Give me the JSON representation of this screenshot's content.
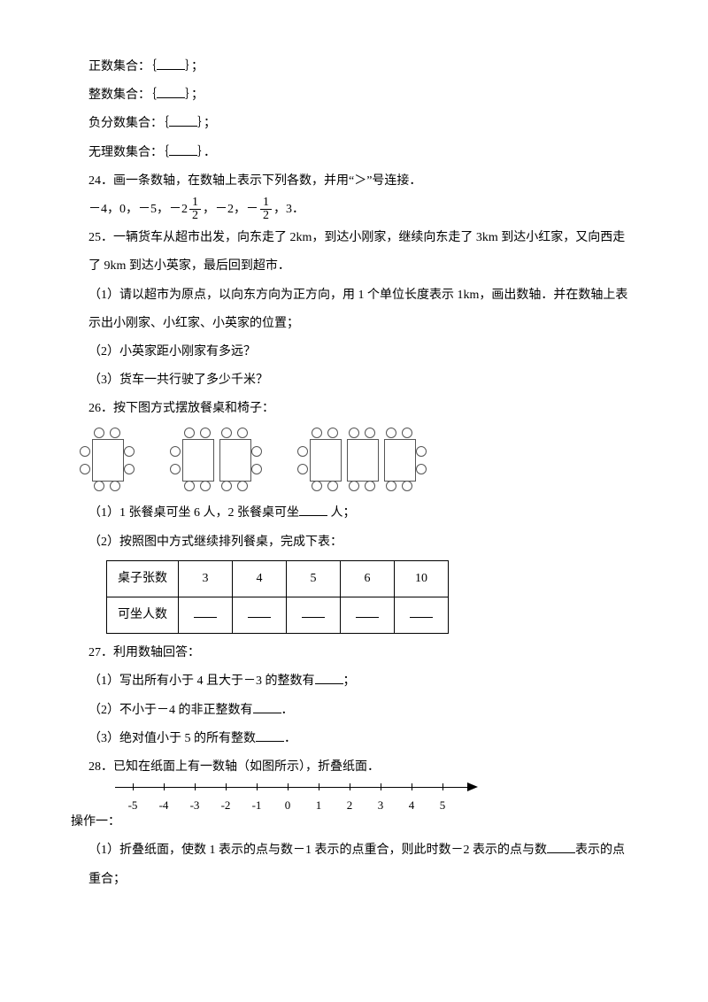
{
  "sets": {
    "positive": "正数集合：｛",
    "integer": "整数集合：｛",
    "negfrac": "负分数集合：｛",
    "irrational": "无理数集合：｛",
    "close": "｝；",
    "close_dot": "｝．"
  },
  "q24": {
    "head": "24．画一条数轴，在数轴上表示下列各数，并用“＞”号连接．",
    "nums_a": "－4，0，－5，－2",
    "frac1_num": "1",
    "frac1_den": "2",
    "nums_b": "，－2，－",
    "frac2_num": "1",
    "frac2_den": "2",
    "nums_c": "，3．"
  },
  "q25": {
    "l1": "25．一辆货车从超市出发，向东走了 2km，到达小刚家，继续向东走了 3km 到达小红家，又向西走",
    "l2": "了 9km 到达小英家，最后回到超市．",
    "p1a": "（1）请以超市为原点，以向东方向为正方向，用 1 个单位长度表示 1km，画出数轴．并在数轴上表",
    "p1b": "示出小刚家、小红家、小英家的位置；",
    "p2": "（2）小英家距小刚家有多远？",
    "p3": "（3）货车一共行驶了多少千米？"
  },
  "q26": {
    "head": "26．按下图方式摆放餐桌和椅子：",
    "p1a": "（1）1 张餐桌可坐 6 人，2 张餐桌可坐",
    "p1b": " 人；",
    "p2": "（2）按照图中方式继续排列餐桌，完成下表：",
    "table": {
      "row1_label": "桌子张数",
      "row1_vals": [
        "3",
        "4",
        "5",
        "6",
        "10"
      ],
      "row2_label": "可坐人数"
    }
  },
  "q27": {
    "head": "27．利用数轴回答：",
    "p1a": "（1）写出所有小于 4 且大于－3 的整数有",
    "p1b": "；",
    "p2a": "（2）不小于－4 的非正整数有",
    "p2b": "．",
    "p3a": "（3）绝对值小于 5 的所有整数",
    "p3b": "．"
  },
  "q28": {
    "head": "28．已知在纸面上有一数轴（如图所示），折叠纸面．",
    "labels": [
      "-5",
      "-4",
      "-3",
      "-2",
      "-1",
      "0",
      "1",
      "2",
      "3",
      "4",
      "5"
    ],
    "op": "操作一：",
    "p1a": "（1）折叠纸面，使数 1 表示的点与数－1 表示的点重合，则此时数－2 表示的点与数",
    "p1b": "表示的点",
    "p1c": "重合；"
  }
}
